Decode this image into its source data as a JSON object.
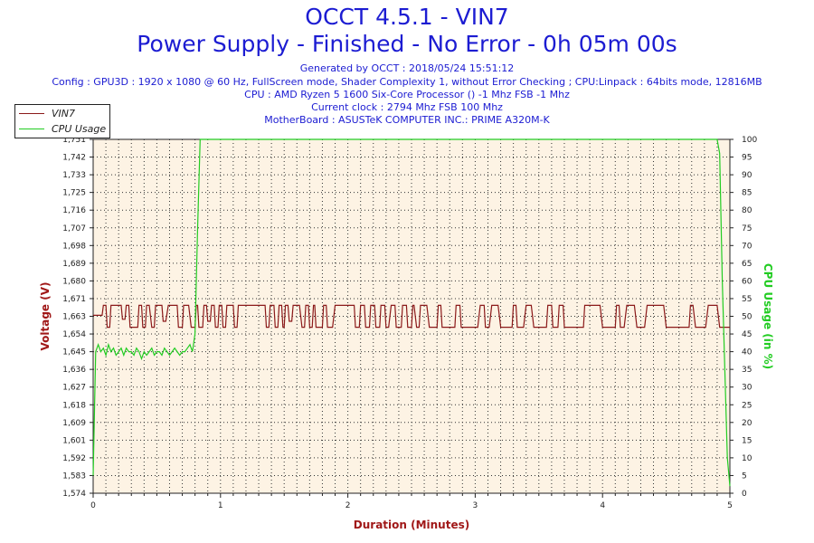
{
  "header": {
    "title": "OCCT 4.5.1 - VIN7",
    "subtitle": "Power Supply - Finished - No Error - 0h 05m 00s",
    "info_lines": [
      "Generated by OCCT : 2018/05/24 15:51:12",
      "Config : GPU3D : 1920 x 1080 @ 60 Hz, FullScreen mode, Shader Complexity 1, without Error Checking ; CPU:Linpack : 64bits mode, 12816MB",
      "CPU : AMD Ryzen 5 1600 Six-Core Processor () -1 Mhz FSB -1 Mhz",
      "Current clock : 2794 Mhz FSB 100 Mhz",
      "MotherBoard : ASUSTeK COMPUTER INC.: PRIME A320M-K"
    ]
  },
  "colors": {
    "title": "#1c1cd2",
    "plot_bg": "#fdf3e4",
    "grid": "#333333",
    "vin7": "#8b1a1a",
    "cpu": "#22cc22"
  },
  "chart_data": {
    "type": "line",
    "title": "OCCT 4.5.1 - VIN7",
    "xlabel": "Duration (Minutes)",
    "ylabel": "Voltage (V)",
    "y2label": "CPU Usage (in %)",
    "xlim": [
      0,
      5
    ],
    "ylim": [
      1.574,
      1.751
    ],
    "y2lim": [
      0,
      100
    ],
    "x_ticks": [
      "0",
      "1",
      "2",
      "3",
      "4",
      "5"
    ],
    "y_ticks": [
      "1,574",
      "1,583",
      "1,592",
      "1,601",
      "1,609",
      "1,618",
      "1,627",
      "1,636",
      "1,645",
      "1,654",
      "1,663",
      "1,671",
      "1,680",
      "1,689",
      "1,698",
      "1,707",
      "1,716",
      "1,725",
      "1,733",
      "1,742",
      "1,751"
    ],
    "y2_ticks": [
      "0",
      "5",
      "10",
      "15",
      "20",
      "25",
      "30",
      "35",
      "40",
      "45",
      "50",
      "55",
      "60",
      "65",
      "70",
      "75",
      "80",
      "85",
      "90",
      "95",
      "100"
    ],
    "grid": true,
    "legend_position": "top-left",
    "series": [
      {
        "name": "VIN7",
        "axis": "left",
        "x": [
          0,
          0.07,
          0.08,
          0.1,
          0.11,
          0.13,
          0.14,
          0.22,
          0.23,
          0.25,
          0.26,
          0.28,
          0.29,
          0.35,
          0.36,
          0.38,
          0.39,
          0.41,
          0.42,
          0.44,
          0.46,
          0.48,
          0.49,
          0.54,
          0.55,
          0.57,
          0.59,
          0.66,
          0.67,
          0.7,
          0.71,
          0.75,
          0.77,
          0.8,
          0.81,
          0.82,
          0.83,
          0.86,
          0.87,
          0.89,
          0.9,
          0.92,
          0.93,
          0.95,
          0.96,
          0.98,
          0.99,
          1.01,
          1.02,
          1.04,
          1.05,
          1.1,
          1.11,
          1.13,
          1.14,
          1.2,
          1.22,
          1.35,
          1.36,
          1.38,
          1.39,
          1.42,
          1.43,
          1.45,
          1.46,
          1.48,
          1.49,
          1.5,
          1.51,
          1.53,
          1.54,
          1.56,
          1.57,
          1.62,
          1.64,
          1.66,
          1.67,
          1.69,
          1.7,
          1.72,
          1.73,
          1.74,
          1.75,
          1.8,
          1.81,
          1.83,
          1.84,
          1.88,
          1.9,
          2.05,
          2.06,
          2.09,
          2.1,
          2.13,
          2.14,
          2.17,
          2.18,
          2.21,
          2.22,
          2.25,
          2.26,
          2.29,
          2.3,
          2.32,
          2.34,
          2.37,
          2.38,
          2.42,
          2.43,
          2.46,
          2.47,
          2.5,
          2.51,
          2.52,
          2.54,
          2.56,
          2.57,
          2.62,
          2.64,
          2.7,
          2.71,
          2.73,
          2.74,
          2.84,
          2.85,
          2.88,
          2.89,
          3.02,
          3.04,
          3.07,
          3.08,
          3.11,
          3.13,
          3.18,
          3.2,
          3.29,
          3.3,
          3.32,
          3.33,
          3.38,
          3.4,
          3.44,
          3.46,
          3.56,
          3.57,
          3.6,
          3.61,
          3.65,
          3.66,
          3.69,
          3.7,
          3.85,
          3.86,
          3.98,
          4.0,
          4.1,
          4.11,
          4.13,
          4.14,
          4.17,
          4.19,
          4.25,
          4.27,
          4.33,
          4.35,
          4.48,
          4.5,
          4.68,
          4.69,
          4.71,
          4.73,
          4.81,
          4.83,
          4.9,
          4.92,
          5.0
        ],
        "values": [
          1.663,
          1.663,
          1.668,
          1.668,
          1.657,
          1.657,
          1.668,
          1.668,
          1.661,
          1.661,
          1.668,
          1.668,
          1.657,
          1.657,
          1.668,
          1.668,
          1.657,
          1.657,
          1.668,
          1.668,
          1.657,
          1.657,
          1.668,
          1.668,
          1.66,
          1.66,
          1.668,
          1.668,
          1.657,
          1.657,
          1.668,
          1.668,
          1.657,
          1.657,
          1.668,
          1.668,
          1.657,
          1.657,
          1.668,
          1.668,
          1.66,
          1.66,
          1.668,
          1.668,
          1.657,
          1.657,
          1.668,
          1.668,
          1.657,
          1.657,
          1.668,
          1.668,
          1.657,
          1.657,
          1.668,
          1.668,
          1.668,
          1.668,
          1.657,
          1.657,
          1.668,
          1.668,
          1.657,
          1.657,
          1.668,
          1.668,
          1.657,
          1.657,
          1.668,
          1.668,
          1.66,
          1.66,
          1.668,
          1.668,
          1.657,
          1.657,
          1.668,
          1.668,
          1.657,
          1.657,
          1.668,
          1.668,
          1.657,
          1.657,
          1.668,
          1.668,
          1.657,
          1.657,
          1.668,
          1.668,
          1.657,
          1.657,
          1.668,
          1.668,
          1.657,
          1.657,
          1.668,
          1.668,
          1.657,
          1.657,
          1.668,
          1.668,
          1.657,
          1.657,
          1.668,
          1.668,
          1.657,
          1.657,
          1.668,
          1.668,
          1.657,
          1.657,
          1.668,
          1.668,
          1.657,
          1.657,
          1.668,
          1.668,
          1.657,
          1.657,
          1.668,
          1.668,
          1.657,
          1.657,
          1.668,
          1.668,
          1.657,
          1.657,
          1.668,
          1.668,
          1.657,
          1.657,
          1.668,
          1.668,
          1.657,
          1.657,
          1.668,
          1.668,
          1.657,
          1.657,
          1.668,
          1.668,
          1.657,
          1.657,
          1.668,
          1.668,
          1.657,
          1.657,
          1.668,
          1.668,
          1.657,
          1.657,
          1.668,
          1.668,
          1.657,
          1.657,
          1.668,
          1.668,
          1.657,
          1.657,
          1.668,
          1.668,
          1.657,
          1.657,
          1.668,
          1.668,
          1.657,
          1.657,
          1.668,
          1.668,
          1.657,
          1.657,
          1.668,
          1.668,
          1.657,
          1.657
        ]
      },
      {
        "name": "CPU Usage",
        "axis": "right",
        "x": [
          0,
          0.02,
          0.04,
          0.06,
          0.08,
          0.1,
          0.12,
          0.14,
          0.16,
          0.18,
          0.2,
          0.22,
          0.24,
          0.26,
          0.28,
          0.3,
          0.32,
          0.34,
          0.36,
          0.38,
          0.4,
          0.42,
          0.44,
          0.46,
          0.48,
          0.5,
          0.52,
          0.54,
          0.56,
          0.58,
          0.6,
          0.62,
          0.64,
          0.66,
          0.68,
          0.7,
          0.72,
          0.74,
          0.76,
          0.78,
          0.8,
          0.82,
          0.84,
          4.9,
          4.92,
          4.94,
          4.96,
          4.98,
          5.0
        ],
        "values": [
          5,
          40,
          42,
          40,
          41,
          39,
          42,
          40,
          41,
          39,
          40,
          41,
          39,
          41,
          40,
          40,
          39,
          41,
          40,
          38,
          40,
          39,
          40,
          41,
          39,
          40,
          40,
          39,
          41,
          40,
          39,
          40,
          41,
          40,
          39,
          40,
          40,
          41,
          42,
          40,
          45,
          75,
          100,
          100,
          96,
          60,
          35,
          10,
          2
        ]
      }
    ]
  }
}
